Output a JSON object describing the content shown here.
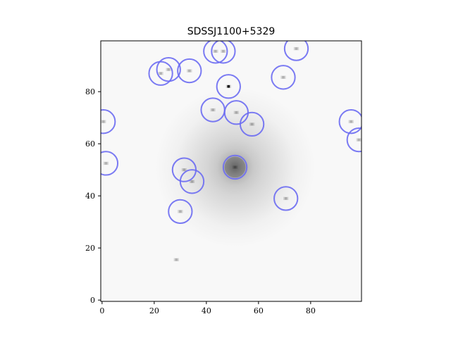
{
  "chart_data": {
    "type": "scatter",
    "title": "SDSSJ1100+5329",
    "xlabel": "",
    "ylabel": "",
    "xlim": [
      -0.5,
      99.5
    ],
    "ylim": [
      -0.5,
      99.5
    ],
    "x_ticks": [
      0,
      20,
      40,
      60,
      80
    ],
    "y_ticks": [
      0,
      20,
      40,
      60,
      80
    ],
    "grid": false,
    "background": "grayscale image (greys colormap)",
    "marker": "open circle",
    "marker_color": "#6b6bf2",
    "lens": {
      "x": 51,
      "y": 51,
      "sigma": 4.5,
      "halo_sigma": 14
    },
    "points": [
      {
        "x": 0.5,
        "y": 68.5
      },
      {
        "x": 1.5,
        "y": 52.5
      },
      {
        "x": 22.5,
        "y": 87
      },
      {
        "x": 25.5,
        "y": 88.5
      },
      {
        "x": 33.5,
        "y": 88
      },
      {
        "x": 43.5,
        "y": 95.5
      },
      {
        "x": 46.5,
        "y": 95.5
      },
      {
        "x": 74.5,
        "y": 96.5
      },
      {
        "x": 48.5,
        "y": 82
      },
      {
        "x": 69.5,
        "y": 85.5
      },
      {
        "x": 42.5,
        "y": 73
      },
      {
        "x": 51.5,
        "y": 72
      },
      {
        "x": 57.5,
        "y": 67.5
      },
      {
        "x": 95.5,
        "y": 68.5
      },
      {
        "x": 98.5,
        "y": 61.5
      },
      {
        "x": 31.5,
        "y": 50
      },
      {
        "x": 34.5,
        "y": 45.5
      },
      {
        "x": 51,
        "y": 51
      },
      {
        "x": 70.5,
        "y": 39
      },
      {
        "x": 30,
        "y": 34
      }
    ],
    "unmarked_sources": [
      {
        "x": 28.5,
        "y": 15.5
      }
    ]
  }
}
